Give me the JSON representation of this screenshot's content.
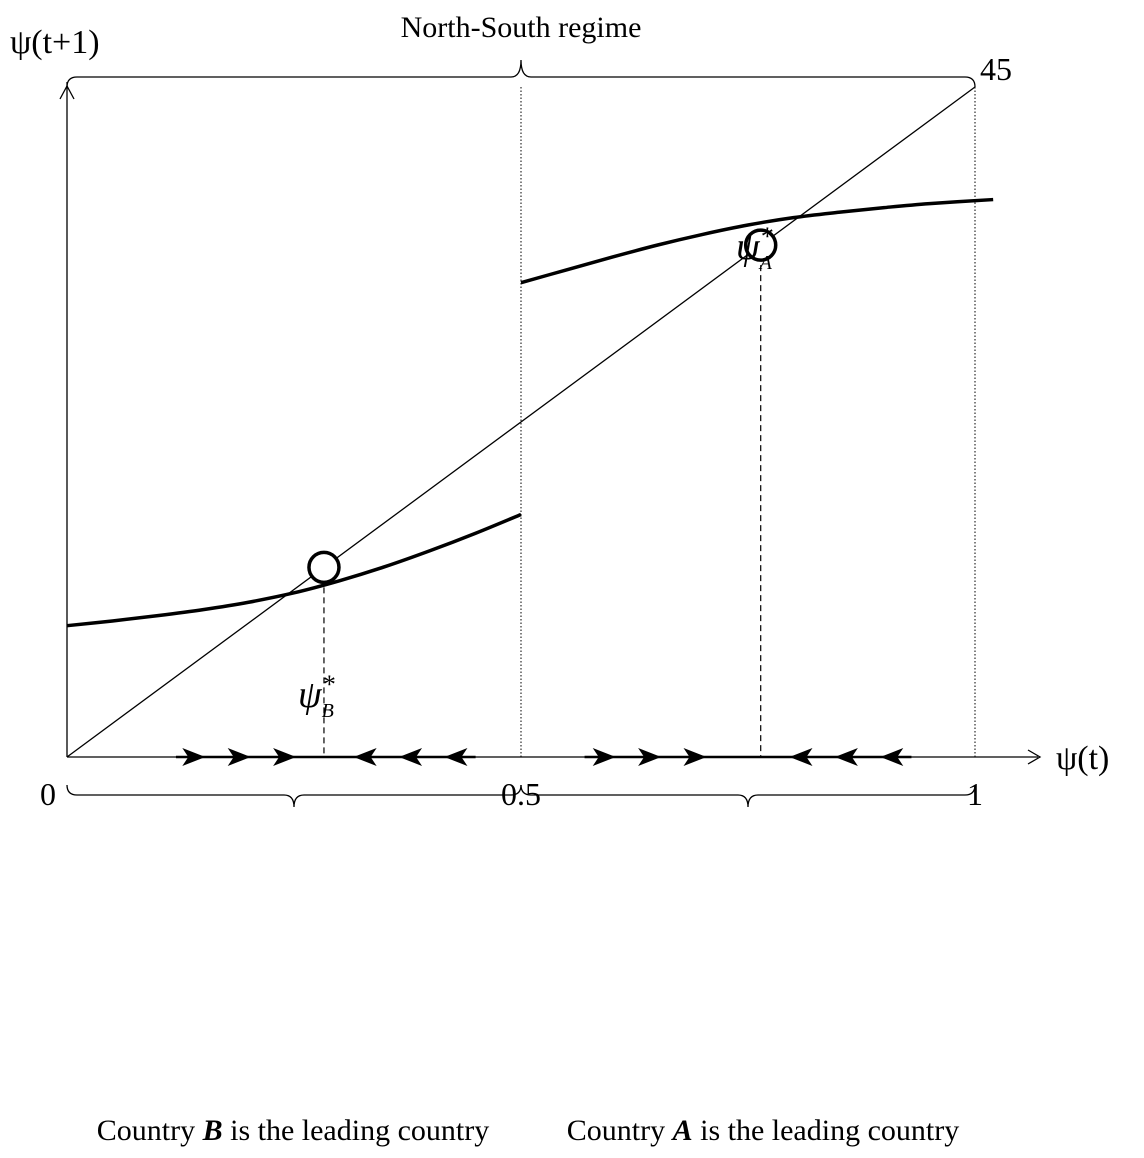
{
  "chart_data": {
    "type": "line",
    "title": "",
    "xlabel": "ψ(t)",
    "ylabel": "ψ(t+1)",
    "xlim": [
      0,
      1
    ],
    "ylim": [
      0,
      1
    ],
    "x_ticks": [
      {
        "value": 0,
        "label": "0"
      },
      {
        "value": 0.5,
        "label": "0.5"
      },
      {
        "value": 1,
        "label": "1"
      }
    ],
    "diagonal_label": "45",
    "series": [
      {
        "x": [
          0,
          0.05,
          0.1,
          0.15,
          0.2,
          0.25,
          0.3,
          0.35,
          0.4,
          0.45,
          0.5
        ],
        "y": [
          0.196,
          0.203,
          0.211,
          0.22,
          0.231,
          0.245,
          0.263,
          0.284,
          0.308,
          0.334,
          0.362
        ]
      },
      {
        "x": [
          0.5,
          0.55,
          0.6,
          0.65,
          0.7,
          0.75,
          0.8,
          0.85,
          0.9,
          0.95,
          1.02
        ],
        "y": [
          0.708,
          0.727,
          0.746,
          0.764,
          0.78,
          0.794,
          0.805,
          0.813,
          0.82,
          0.826,
          0.832
        ]
      },
      {
        "x": [
          0,
          1
        ],
        "y": [
          0,
          1
        ]
      }
    ],
    "equilibria": [
      {
        "x": 0.283,
        "y": 0.283,
        "label": "ψ",
        "superscript": "*",
        "subscript": "B"
      },
      {
        "x": 0.764,
        "y": 0.764,
        "label": "ψ",
        "superscript": "*",
        "subscript": "A"
      }
    ],
    "dynamics_arrows": [
      {
        "x": 0.138,
        "direction": "right"
      },
      {
        "x": 0.188,
        "direction": "right"
      },
      {
        "x": 0.238,
        "direction": "right"
      },
      {
        "x": 0.33,
        "direction": "left"
      },
      {
        "x": 0.38,
        "direction": "left"
      },
      {
        "x": 0.43,
        "direction": "left"
      },
      {
        "x": 0.59,
        "direction": "right"
      },
      {
        "x": 0.64,
        "direction": "right"
      },
      {
        "x": 0.69,
        "direction": "right"
      },
      {
        "x": 0.81,
        "direction": "left"
      },
      {
        "x": 0.86,
        "direction": "left"
      },
      {
        "x": 0.91,
        "direction": "left"
      }
    ],
    "annotations": {
      "top_brace": {
        "from": 0,
        "to": 1,
        "text": "North-South regime"
      },
      "bottom_braces": [
        {
          "from": 0,
          "to": 0.5,
          "pre": "Country ",
          "bold": "B",
          "post": " is the leading country"
        },
        {
          "from": 0.5,
          "to": 1,
          "pre": "Country ",
          "bold": "A",
          "post": " is the leading country"
        }
      ]
    }
  }
}
